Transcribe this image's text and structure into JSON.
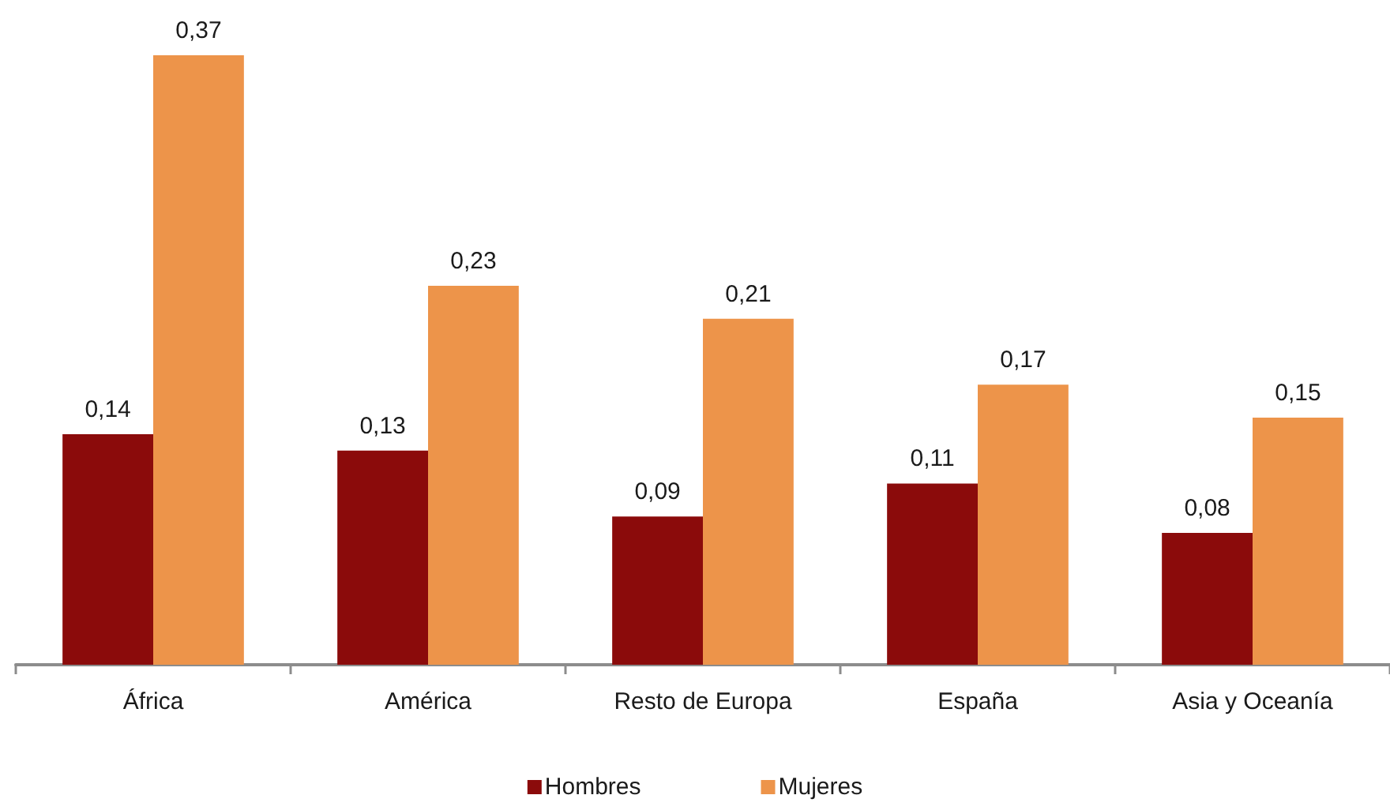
{
  "chart_data": {
    "type": "bar",
    "categories": [
      "África",
      "América",
      "Resto de Europa",
      "España",
      "Asia y Oceanía"
    ],
    "series": [
      {
        "name": "Hombres",
        "color": "#8b0b0b",
        "values": [
          0.14,
          0.13,
          0.09,
          0.11,
          0.08
        ],
        "value_labels": [
          "0,14",
          "0,13",
          "0,09",
          "0,11",
          "0,08"
        ]
      },
      {
        "name": "Mujeres",
        "color": "#ed944a",
        "values": [
          0.37,
          0.23,
          0.21,
          0.17,
          0.15
        ],
        "value_labels": [
          "0,37",
          "0,23",
          "0,21",
          "0,17",
          "0,15"
        ]
      }
    ],
    "legend": "bottom",
    "tick_labels": "x"
  }
}
